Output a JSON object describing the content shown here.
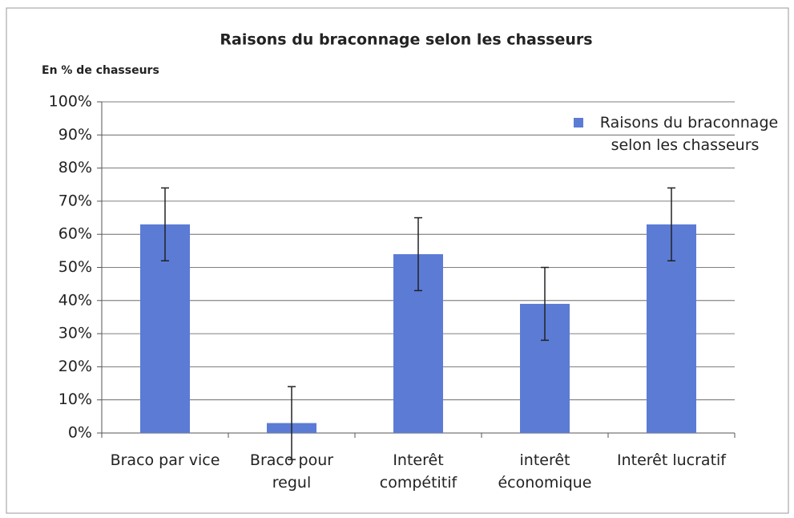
{
  "chart_data": {
    "type": "bar",
    "title": "Raisons du braconnage selon les chasseurs",
    "y_axis_label": "En  % de chasseurs",
    "categories": [
      "Braco par vice",
      "Braco pour regul",
      "Interêt compétitif",
      "interêt économique",
      "Interêt lucratif"
    ],
    "series": [
      {
        "name": "Raisons du braconnage selon les chasseurs",
        "color": "#5b7bd5",
        "values": [
          63,
          3,
          54,
          39,
          63
        ],
        "errors": [
          11,
          11,
          11,
          11,
          11
        ]
      }
    ],
    "ylim": [
      0,
      100
    ],
    "yticks": [
      {
        "value": 0,
        "label": "0%"
      },
      {
        "value": 10,
        "label": "10%"
      },
      {
        "value": 20,
        "label": "20%"
      },
      {
        "value": 30,
        "label": "30%"
      },
      {
        "value": 40,
        "label": "40%"
      },
      {
        "value": 50,
        "label": "50%"
      },
      {
        "value": 60,
        "label": "60%"
      },
      {
        "value": 70,
        "label": "70%"
      },
      {
        "value": 80,
        "label": "80%"
      },
      {
        "value": 90,
        "label": "90%"
      },
      {
        "value": 100,
        "label": "100%"
      }
    ],
    "grid": true,
    "legend": "top-right"
  }
}
